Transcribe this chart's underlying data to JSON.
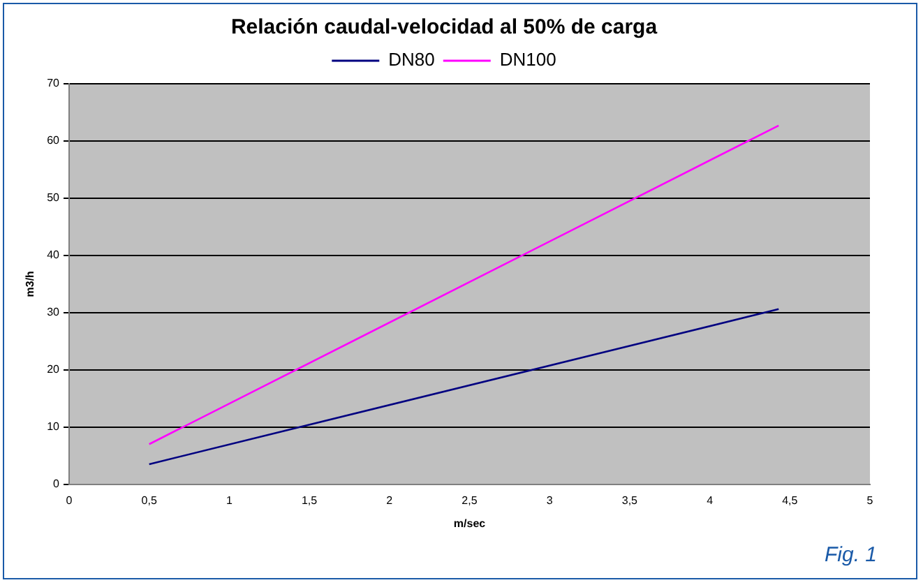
{
  "chart_data": {
    "type": "line",
    "title": "Relación caudal-velocidad al 50% de carga",
    "xlabel": "m/sec",
    "ylabel": "m3/h",
    "series": [
      {
        "name": "DN80",
        "color": "#000080",
        "values": [
          3.5,
          30.6
        ]
      },
      {
        "name": "DN100",
        "color": "#ff00ff",
        "values": [
          7,
          62.7
        ]
      }
    ],
    "x": [
      0.5,
      4.43
    ],
    "xlim": [
      0,
      5
    ],
    "xticks": [
      0,
      {
        "value": 0.5,
        "label": "0,5"
      },
      1,
      {
        "value": 1.5,
        "label": "1,5"
      },
      2,
      {
        "value": 2.5,
        "label": "2,5"
      },
      3,
      {
        "value": 3.5,
        "label": "3,5"
      },
      4,
      {
        "value": 4.5,
        "label": "4,5"
      },
      5
    ],
    "ylim": [
      0,
      70
    ],
    "yticks": [
      0,
      10,
      20,
      30,
      40,
      50,
      60,
      70
    ],
    "grid": "y",
    "legend": "top",
    "marker": "none",
    "line_style": "solid",
    "annotations": [
      "Fig. 1"
    ]
  }
}
